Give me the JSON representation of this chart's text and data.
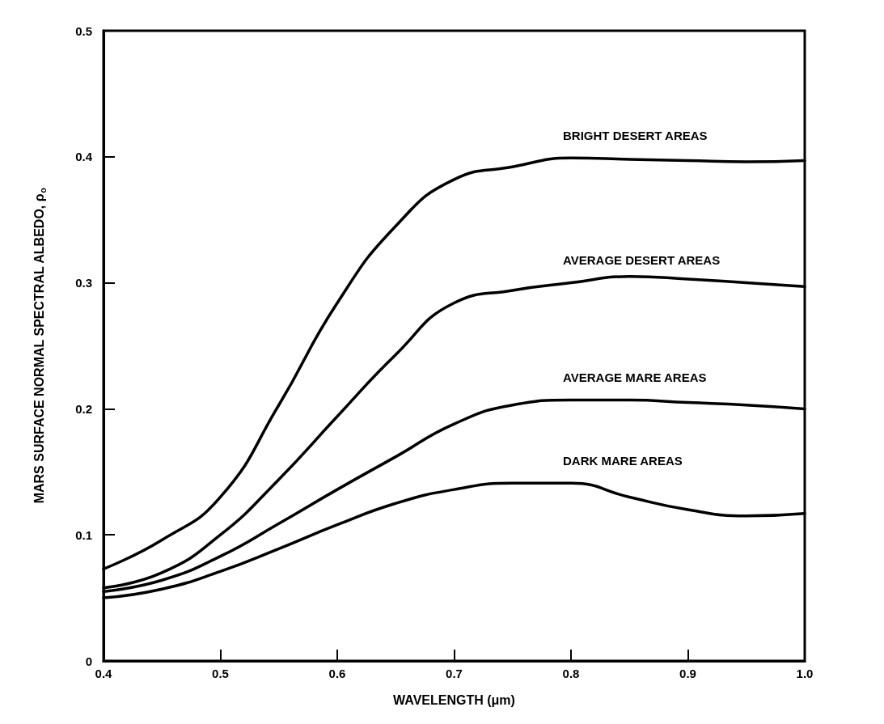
{
  "chart_data": {
    "type": "line",
    "xlabel": "WAVELENGTH (μm)",
    "ylabel": "MARS SURFACE NORMAL SPECTRAL ALBEDO, ρ$_{o}$",
    "x": [
      0.4,
      0.45,
      0.5,
      0.55,
      0.6,
      0.65,
      0.7,
      0.75,
      0.8,
      0.85,
      0.9,
      0.95,
      1.0
    ],
    "series": [
      {
        "name": "BRIGHT DESERT AREAS",
        "color": "#000000",
        "values": [
          0.073,
          0.096,
          0.13,
          0.203,
          0.284,
          0.345,
          0.382,
          0.392,
          0.399,
          0.398,
          0.397,
          0.396,
          0.397
        ]
      },
      {
        "name": "AVERAGE DESERT AREAS",
        "color": "#000000",
        "values": [
          0.058,
          0.07,
          0.1,
          0.144,
          0.194,
          0.243,
          0.284,
          0.294,
          0.3,
          0.305,
          0.303,
          0.3,
          0.297
        ]
      },
      {
        "name": "AVERAGE MARE AREAS",
        "color": "#000000",
        "values": [
          0.055,
          0.064,
          0.083,
          0.109,
          0.136,
          0.162,
          0.188,
          0.203,
          0.207,
          0.207,
          0.205,
          0.203,
          0.2
        ]
      },
      {
        "name": "DARK MARE AREAS",
        "color": "#000000",
        "values": [
          0.05,
          0.057,
          0.071,
          0.089,
          0.108,
          0.125,
          0.136,
          0.141,
          0.141,
          0.13,
          0.12,
          0.115,
          0.117
        ]
      }
    ],
    "xlim": [
      0.4,
      1.0
    ],
    "xticks": [
      0.4,
      0.5,
      0.6,
      0.7,
      0.8,
      0.9,
      {
        "value": 1.0,
        "label": "1.0"
      }
    ],
    "ylim": [
      0,
      0.5
    ],
    "yticks": [
      0,
      0.1,
      0.2,
      0.3,
      0.4,
      0.5
    ],
    "grid": false,
    "marker": "none",
    "line_style": "solid"
  }
}
